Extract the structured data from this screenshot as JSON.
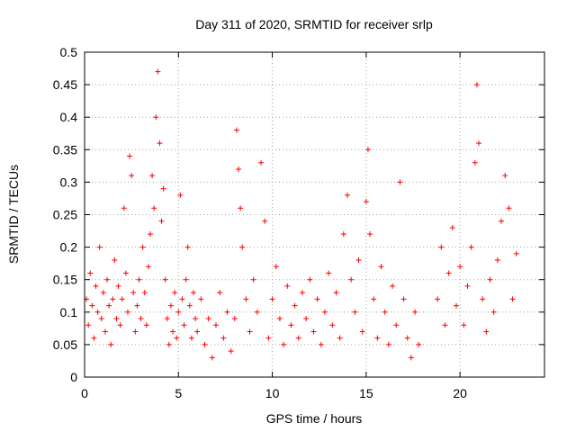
{
  "chart_data": {
    "type": "scatter",
    "title": "Day 311 of 2020, SRMTID for receiver srlp",
    "xlabel": "GPS time / hours",
    "ylabel": "SRMTID / TECUs",
    "xlim": [
      0,
      24.5
    ],
    "ylim": [
      0,
      0.5
    ],
    "xticks": [
      0,
      5,
      10,
      15,
      20
    ],
    "yticks": [
      0,
      0.05,
      0.1,
      0.15,
      0.2,
      0.25,
      0.3,
      0.35,
      0.4,
      0.45,
      0.5
    ],
    "xtick_labels": [
      "0",
      "5",
      "10",
      "15",
      "20"
    ],
    "ytick_labels": [
      "0",
      "0.05",
      "0.1",
      "0.15",
      "0.2",
      "0.25",
      "0.3",
      "0.35",
      "0.4",
      "0.45",
      "0.5"
    ],
    "grid": true,
    "marker": "+",
    "color": "#ff0000",
    "data_gap_hours": [
      17.9,
      18.6
    ],
    "series": [
      {
        "points": [
          [
            0.1,
            0.12
          ],
          [
            0.2,
            0.08
          ],
          [
            0.3,
            0.16
          ],
          [
            0.4,
            0.11
          ],
          [
            0.5,
            0.06
          ],
          [
            0.6,
            0.14
          ],
          [
            0.7,
            0.1
          ],
          [
            0.8,
            0.2
          ],
          [
            0.9,
            0.09
          ],
          [
            1.0,
            0.13
          ],
          [
            1.1,
            0.07
          ],
          [
            1.2,
            0.15
          ],
          [
            1.3,
            0.11
          ],
          [
            1.4,
            0.05
          ],
          [
            1.5,
            0.12
          ],
          [
            1.6,
            0.18
          ],
          [
            1.7,
            0.09
          ],
          [
            1.8,
            0.14
          ],
          [
            1.9,
            0.08
          ],
          [
            2.0,
            0.12
          ],
          [
            2.1,
            0.26
          ],
          [
            2.2,
            0.16
          ],
          [
            2.3,
            0.1
          ],
          [
            2.4,
            0.34
          ],
          [
            2.5,
            0.31
          ],
          [
            2.6,
            0.13
          ],
          [
            2.7,
            0.07
          ],
          [
            2.8,
            0.11
          ],
          [
            2.9,
            0.15
          ],
          [
            3.0,
            0.09
          ],
          [
            3.1,
            0.2
          ],
          [
            3.2,
            0.13
          ],
          [
            3.3,
            0.08
          ],
          [
            3.4,
            0.17
          ],
          [
            3.5,
            0.22
          ],
          [
            3.6,
            0.31
          ],
          [
            3.7,
            0.26
          ],
          [
            3.8,
            0.4
          ],
          [
            3.9,
            0.47
          ],
          [
            4.0,
            0.36
          ],
          [
            4.1,
            0.24
          ],
          [
            4.2,
            0.29
          ],
          [
            4.3,
            0.15
          ],
          [
            4.4,
            0.09
          ],
          [
            4.5,
            0.05
          ],
          [
            4.6,
            0.11
          ],
          [
            4.7,
            0.07
          ],
          [
            4.8,
            0.13
          ],
          [
            4.9,
            0.06
          ],
          [
            5.0,
            0.1
          ],
          [
            5.1,
            0.28
          ],
          [
            5.2,
            0.12
          ],
          [
            5.3,
            0.08
          ],
          [
            5.4,
            0.15
          ],
          [
            5.5,
            0.2
          ],
          [
            5.6,
            0.11
          ],
          [
            5.7,
            0.06
          ],
          [
            5.8,
            0.13
          ],
          [
            5.9,
            0.09
          ],
          [
            6.0,
            0.07
          ],
          [
            6.2,
            0.12
          ],
          [
            6.4,
            0.05
          ],
          [
            6.6,
            0.09
          ],
          [
            6.8,
            0.03
          ],
          [
            7.0,
            0.08
          ],
          [
            7.2,
            0.13
          ],
          [
            7.4,
            0.06
          ],
          [
            7.6,
            0.1
          ],
          [
            7.8,
            0.04
          ],
          [
            8.0,
            0.09
          ],
          [
            8.1,
            0.38
          ],
          [
            8.2,
            0.32
          ],
          [
            8.3,
            0.26
          ],
          [
            8.4,
            0.2
          ],
          [
            8.6,
            0.12
          ],
          [
            8.8,
            0.07
          ],
          [
            9.0,
            0.15
          ],
          [
            9.2,
            0.1
          ],
          [
            9.4,
            0.33
          ],
          [
            9.6,
            0.24
          ],
          [
            9.8,
            0.06
          ],
          [
            10.0,
            0.12
          ],
          [
            10.2,
            0.17
          ],
          [
            10.4,
            0.09
          ],
          [
            10.6,
            0.05
          ],
          [
            10.8,
            0.14
          ],
          [
            11.0,
            0.08
          ],
          [
            11.2,
            0.11
          ],
          [
            11.4,
            0.06
          ],
          [
            11.6,
            0.13
          ],
          [
            11.8,
            0.09
          ],
          [
            12.0,
            0.15
          ],
          [
            12.2,
            0.07
          ],
          [
            12.4,
            0.12
          ],
          [
            12.6,
            0.05
          ],
          [
            12.8,
            0.1
          ],
          [
            13.0,
            0.16
          ],
          [
            13.2,
            0.08
          ],
          [
            13.4,
            0.13
          ],
          [
            13.6,
            0.06
          ],
          [
            13.8,
            0.22
          ],
          [
            14.0,
            0.28
          ],
          [
            14.2,
            0.15
          ],
          [
            14.4,
            0.1
          ],
          [
            14.6,
            0.18
          ],
          [
            14.8,
            0.07
          ],
          [
            15.0,
            0.27
          ],
          [
            15.1,
            0.35
          ],
          [
            15.2,
            0.22
          ],
          [
            15.4,
            0.12
          ],
          [
            15.6,
            0.06
          ],
          [
            15.8,
            0.17
          ],
          [
            16.0,
            0.1
          ],
          [
            16.2,
            0.05
          ],
          [
            16.4,
            0.14
          ],
          [
            16.6,
            0.08
          ],
          [
            16.8,
            0.3
          ],
          [
            17.0,
            0.12
          ],
          [
            17.2,
            0.06
          ],
          [
            17.4,
            0.03
          ],
          [
            17.6,
            0.1
          ],
          [
            17.8,
            0.05
          ],
          [
            18.8,
            0.12
          ],
          [
            19.0,
            0.2
          ],
          [
            19.2,
            0.08
          ],
          [
            19.4,
            0.16
          ],
          [
            19.6,
            0.23
          ],
          [
            19.8,
            0.11
          ],
          [
            20.0,
            0.17
          ],
          [
            20.2,
            0.08
          ],
          [
            20.4,
            0.14
          ],
          [
            20.6,
            0.2
          ],
          [
            20.8,
            0.33
          ],
          [
            20.9,
            0.45
          ],
          [
            21.0,
            0.36
          ],
          [
            21.2,
            0.12
          ],
          [
            21.4,
            0.07
          ],
          [
            21.6,
            0.15
          ],
          [
            21.8,
            0.1
          ],
          [
            22.0,
            0.18
          ],
          [
            22.2,
            0.24
          ],
          [
            22.4,
            0.31
          ],
          [
            22.6,
            0.26
          ],
          [
            22.8,
            0.12
          ],
          [
            23.0,
            0.19
          ]
        ]
      }
    ]
  }
}
